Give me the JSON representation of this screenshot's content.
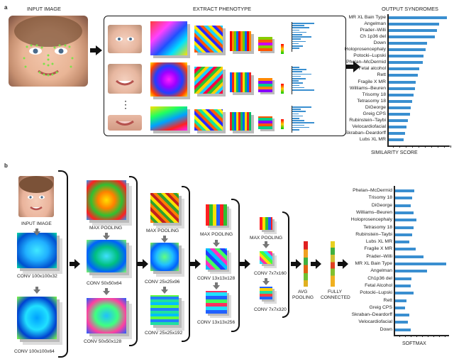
{
  "panel_a": {
    "letter": "a",
    "input_title": "INPUT IMAGE",
    "extract_title": "EXTRACT PHENOTYPE",
    "output_title": "OUTPUT SYNDROMES",
    "axis_label": "SIMILARITY SCORE",
    "ellipsis": "⋮",
    "syndromes": [
      "MR XL Bain Type",
      "Angelman",
      "Prader–Willi",
      "Ch 1p36 del",
      "Down",
      "Holoprosencephaly",
      "Potocki–Lupski",
      "Phelan–McDermid",
      "Fetal alcohol",
      "Rett",
      "Fragile X MR",
      "Williams–Beuren",
      "Trisomy 18",
      "Tetrasomy 18",
      "DiGeorge",
      "Greig CPS",
      "Rubinstein–Taybi",
      "Velocardiofacial",
      "Skraban–Deardorff",
      "Lubs XL MR"
    ],
    "scores": [
      1.0,
      0.86,
      0.83,
      0.79,
      0.66,
      0.63,
      0.6,
      0.58,
      0.52,
      0.5,
      0.46,
      0.45,
      0.43,
      0.4,
      0.38,
      0.36,
      0.33,
      0.3,
      0.28,
      0.26
    ]
  },
  "panel_b": {
    "letter": "b",
    "input_label": "INPUT IMAGE",
    "conv1a": "CONV 100x100x32",
    "conv1b": "CONV 100x100x64",
    "pool1": "MAX POOLING",
    "conv2a": "CONV 50x50x64",
    "conv2b": "CONV 50x50x128",
    "pool2": "MAX POOLING",
    "conv3a": "CONV 25x25x96",
    "conv3b": "CONV 25x25x192",
    "pool3": "MAX POOLING",
    "conv4a": "CONV 13x13x128",
    "conv4b": "CONV 13x13x256",
    "pool4": "MAX POOLING",
    "conv5a": "CONV 7x7x160",
    "conv5b": "CONV 7x7x320",
    "avg_pool": "AVG\nPOOLING",
    "avg_pool_l1": "AVG",
    "avg_pool_l2": "POOLING",
    "fc_l1": "FULLY",
    "fc_l2": "CONNECTED",
    "axis_label": "SOFTMAX",
    "syndromes": [
      "Phelan–McDermid",
      "Trisomy 18",
      "DiGeorge",
      "Williams–Beuren",
      "Holoprosencephaly",
      "Tetrasomy 18",
      "Rubinstein–Taybi",
      "Lubs XL MR",
      "Fragile X MR",
      "Prader–Willi",
      "MR XL Bain Type",
      "Angelman",
      "Ch1p36 del",
      "Fetal Alcohol",
      "Potocki–Lupski",
      "Rett",
      "Greig CPS",
      "Skraban–Deardorff",
      "Velocardiofacial",
      "Down"
    ],
    "scores": [
      0.38,
      0.34,
      0.3,
      0.36,
      0.42,
      0.36,
      0.34,
      0.28,
      0.4,
      0.55,
      1.0,
      0.62,
      0.32,
      0.3,
      0.36,
      0.22,
      0.2,
      0.28,
      0.25,
      0.3
    ]
  },
  "colors": {
    "bar": "#3a8fd0",
    "line": "#111111"
  }
}
